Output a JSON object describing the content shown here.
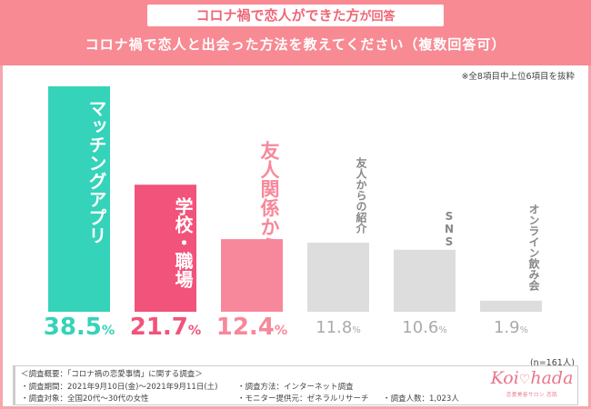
{
  "header": {
    "badge_main": "コロナ禍で恋人ができた方",
    "badge_suffix": "が回答",
    "question": "コロナ禍で恋人と出会った方法を教えてください（複数回答可）"
  },
  "note": "※全8項目中上位6項目を抜粋",
  "chart_data": {
    "type": "bar",
    "title": "コロナ禍で恋人と出会った方法を教えてください（複数回答可）",
    "categories": [
      "マッチングアプリ",
      "学校・職場",
      "友人関係から発展",
      "友人からの紹介",
      "SNS",
      "オンライン飲み会"
    ],
    "values": [
      38.5,
      21.7,
      12.4,
      11.8,
      10.6,
      1.9
    ],
    "unit": "%",
    "sample_size": "(n=161人)",
    "colors": [
      "#35d3b9",
      "#f1537a",
      "#f7889b",
      "#dddddd",
      "#dddddd",
      "#dddddd"
    ],
    "label_colors": [
      "#ffffff",
      "#ffffff",
      "#f7889b",
      "#888888",
      "#888888",
      "#888888"
    ],
    "pct_colors": [
      "#35d3b9",
      "#f1537a",
      "#f7889b",
      "#aaaaaa",
      "#aaaaaa",
      "#aaaaaa"
    ],
    "grid": false,
    "legend": "none"
  },
  "survey": {
    "title": "＜調査概要：「コロナ禍の恋愛事情」に関する調査＞",
    "period": "・調査期間：2021年9月10日(金)〜2021年9月11日(土)",
    "method": "・調査方法：インターネット調査",
    "target": "・調査対象：全国20代〜30代の女性",
    "provider": "・モニター提供元：ゼネラルリサーチ",
    "count": "・調査人数：1,023人"
  },
  "logo": {
    "text_left": "Koi",
    "heart": "♡",
    "text_right": "hada",
    "tagline": "恋愛美容サロン 恋肌"
  }
}
